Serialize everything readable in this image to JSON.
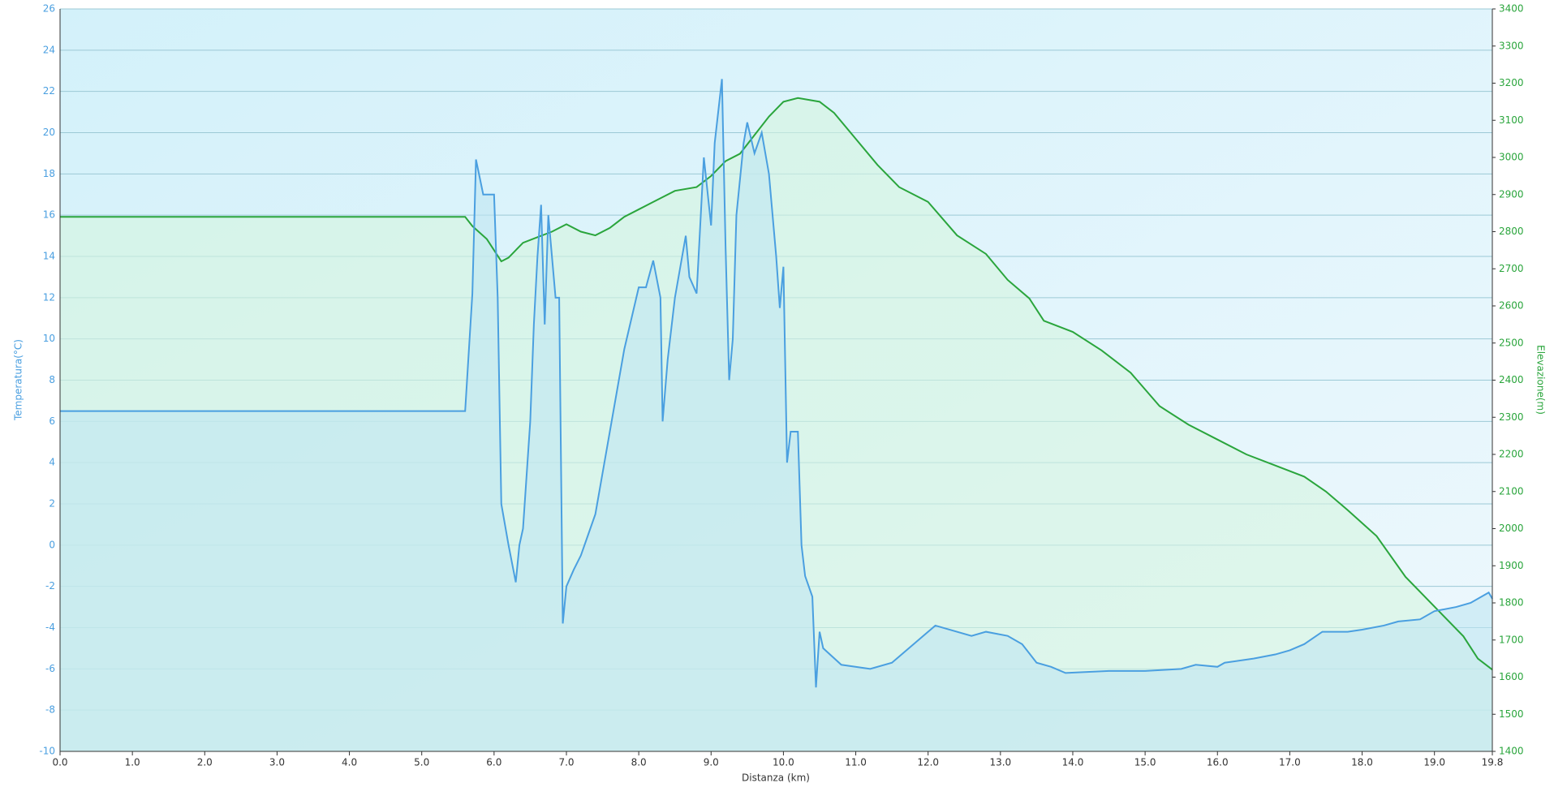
{
  "chart_data": {
    "type": "line",
    "xlabel": "Distanza  (km)",
    "ylabel": "Temperatura(°C)",
    "y2label": "Elevazione(m)",
    "xlim": [
      0,
      19.8
    ],
    "xticks": [
      {
        "value": 0,
        "label": "0.0"
      },
      {
        "value": 1,
        "label": "1.0"
      },
      {
        "value": 2,
        "label": "2.0"
      },
      {
        "value": 3,
        "label": "3.0"
      },
      {
        "value": 4,
        "label": "4.0"
      },
      {
        "value": 5,
        "label": "5.0"
      },
      {
        "value": 6,
        "label": "6.0"
      },
      {
        "value": 7,
        "label": "7.0"
      },
      {
        "value": 8,
        "label": "8.0"
      },
      {
        "value": 9,
        "label": "9.0"
      },
      {
        "value": 10,
        "label": "10.0"
      },
      {
        "value": 11,
        "label": "11.0"
      },
      {
        "value": 12,
        "label": "12.0"
      },
      {
        "value": 13,
        "label": "13.0"
      },
      {
        "value": 14,
        "label": "14.0"
      },
      {
        "value": 15,
        "label": "15.0"
      },
      {
        "value": 16,
        "label": "16.0"
      },
      {
        "value": 17,
        "label": "17.0"
      },
      {
        "value": 18,
        "label": "18.0"
      },
      {
        "value": 19,
        "label": "19.0"
      },
      {
        "value": 19.8,
        "label": "19.8"
      }
    ],
    "ylim": [
      -10,
      26
    ],
    "yticks": [
      -10,
      -8,
      -6,
      -4,
      -2,
      0,
      2,
      4,
      6,
      8,
      10,
      12,
      14,
      16,
      18,
      20,
      22,
      24,
      26
    ],
    "y2lim": [
      1400,
      3400
    ],
    "y2ticks": [
      1400,
      1500,
      1600,
      1700,
      1800,
      1900,
      2000,
      2100,
      2200,
      2300,
      2400,
      2500,
      2600,
      2700,
      2800,
      2900,
      3000,
      3100,
      3200,
      3300,
      3400
    ],
    "grid": true,
    "series": [
      {
        "name": "Temperatura",
        "color": "#4a9fe0",
        "fill": "#bfe6f2",
        "x": [
          0,
          5.6,
          5.7,
          5.75,
          5.85,
          6.0,
          6.05,
          6.1,
          6.2,
          6.3,
          6.35,
          6.4,
          6.5,
          6.55,
          6.6,
          6.65,
          6.7,
          6.75,
          6.85,
          6.9,
          6.95,
          7.0,
          7.1,
          7.2,
          7.3,
          7.4,
          7.5,
          7.6,
          7.7,
          7.8,
          7.9,
          8.0,
          8.1,
          8.2,
          8.3,
          8.33,
          8.4,
          8.5,
          8.6,
          8.65,
          8.7,
          8.8,
          8.9,
          9.0,
          9.05,
          9.15,
          9.2,
          9.25,
          9.3,
          9.35,
          9.45,
          9.5,
          9.6,
          9.7,
          9.8,
          9.9,
          9.95,
          10.0,
          10.05,
          10.1,
          10.2,
          10.25,
          10.3,
          10.4,
          10.45,
          10.5,
          10.55,
          10.8,
          11.2,
          11.5,
          12.1,
          12.6,
          12.8,
          13.1,
          13.3,
          13.5,
          13.7,
          13.9,
          14.5,
          15.0,
          15.5,
          15.7,
          16.0,
          16.1,
          16.5,
          16.8,
          17.0,
          17.2,
          17.45,
          17.8,
          18.0,
          18.3,
          18.5,
          18.8,
          19.0,
          19.3,
          19.5,
          19.75,
          19.8
        ],
        "values": [
          6.5,
          6.5,
          12.2,
          18.7,
          17,
          17,
          12,
          2,
          0,
          -1.8,
          0,
          0.8,
          6,
          10.7,
          14,
          16.5,
          10.7,
          16,
          12,
          12,
          -3.8,
          -2,
          -1.2,
          -0.5,
          0.5,
          1.5,
          3.5,
          5.5,
          7.5,
          9.5,
          11,
          12.5,
          12.5,
          13.8,
          12,
          6,
          9,
          12,
          14,
          15,
          13,
          12.2,
          18.8,
          15.5,
          19.5,
          22.6,
          14.5,
          8,
          10,
          16,
          19.5,
          20.5,
          19,
          20,
          18,
          14,
          11.5,
          13.5,
          4,
          5.5,
          5.5,
          0,
          -1.5,
          -2.5,
          -6.9,
          -4.2,
          -5,
          -5.8,
          -6,
          -5.7,
          -3.9,
          -4.4,
          -4.2,
          -4.4,
          -4.8,
          -5.7,
          -5.9,
          -6.2,
          -6.1,
          -6.1,
          -6.0,
          -5.8,
          -5.9,
          -5.7,
          -5.5,
          -5.3,
          -5.1,
          -4.8,
          -4.2,
          -4.2,
          -4.1,
          -3.9,
          -3.7,
          -3.6,
          -3.2,
          -3.0,
          -2.8,
          -2.3,
          -2.6
        ]
      },
      {
        "name": "Elevazione",
        "color": "#2aa53c",
        "fill": "#d6f5e0",
        "axis": "y2",
        "x": [
          0,
          5.6,
          5.7,
          5.9,
          6.1,
          6.2,
          6.4,
          6.6,
          6.8,
          7.0,
          7.2,
          7.4,
          7.6,
          7.8,
          8.0,
          8.2,
          8.5,
          8.8,
          9.0,
          9.2,
          9.4,
          9.6,
          9.8,
          10.0,
          10.2,
          10.5,
          10.7,
          11.0,
          11.3,
          11.6,
          12.0,
          12.4,
          12.8,
          13.1,
          13.4,
          13.6,
          14.0,
          14.4,
          14.8,
          15.2,
          15.6,
          16.0,
          16.4,
          16.8,
          17.2,
          17.5,
          17.8,
          18.2,
          18.6,
          19.0,
          19.4,
          19.6,
          19.8
        ],
        "values": [
          2840,
          2840,
          2815,
          2780,
          2720,
          2730,
          2770,
          2785,
          2800,
          2820,
          2800,
          2790,
          2810,
          2840,
          2860,
          2880,
          2910,
          2920,
          2950,
          2990,
          3010,
          3060,
          3110,
          3150,
          3160,
          3150,
          3120,
          3050,
          2980,
          2920,
          2880,
          2790,
          2740,
          2670,
          2620,
          2560,
          2530,
          2480,
          2420,
          2330,
          2280,
          2240,
          2200,
          2170,
          2140,
          2100,
          2050,
          1980,
          1870,
          1790,
          1710,
          1650,
          1620
        ]
      }
    ]
  }
}
